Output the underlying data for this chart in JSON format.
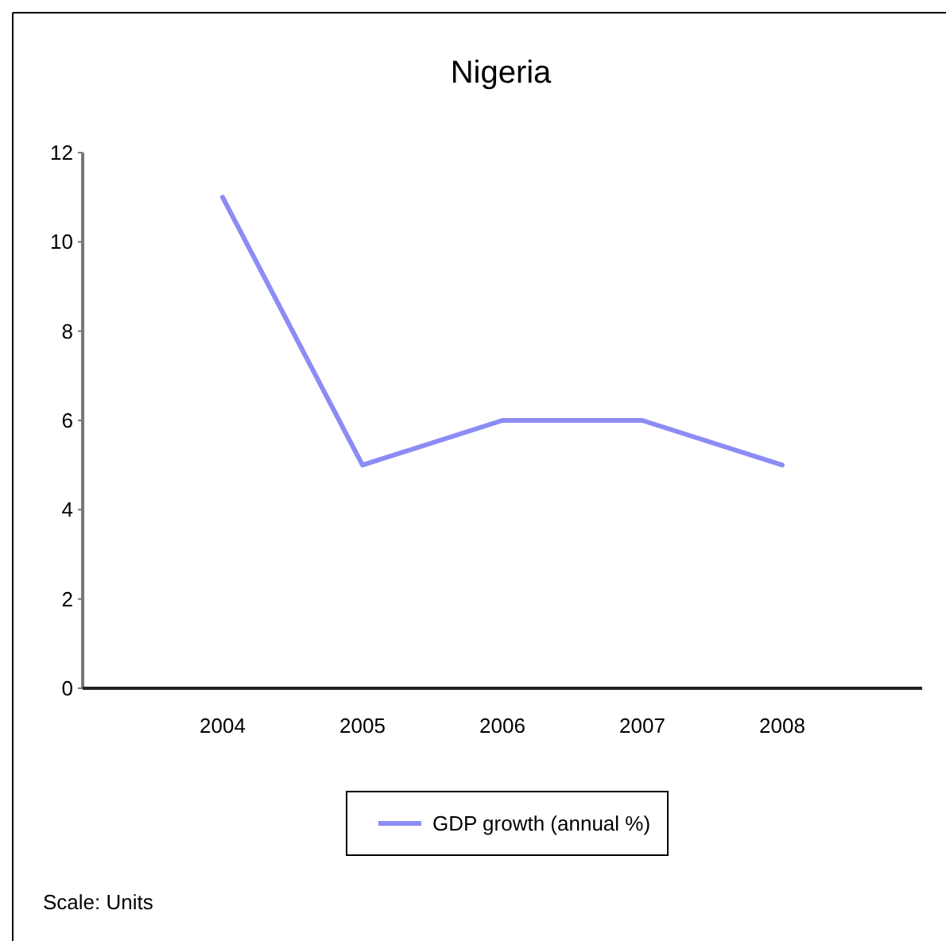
{
  "chart_data": {
    "type": "line",
    "title": "Nigeria",
    "categories": [
      "2004",
      "2005",
      "2006",
      "2007",
      "2008"
    ],
    "series": [
      {
        "name": "GDP growth (annual %)",
        "color": "#8c8cf5",
        "values": [
          11,
          5,
          6,
          6,
          5
        ]
      }
    ],
    "ylim": [
      0,
      12
    ],
    "yticks": [
      0,
      2,
      4,
      6,
      8,
      10,
      12
    ],
    "grid": false,
    "legend": "bottom",
    "annotations": [
      "Scale: Units"
    ]
  }
}
